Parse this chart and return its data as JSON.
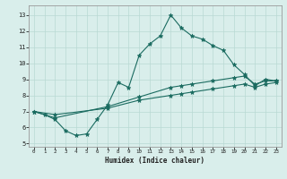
{
  "title": "",
  "xlabel": "Humidex (Indice chaleur)",
  "ylabel": "",
  "xlim": [
    -0.5,
    23.5
  ],
  "ylim": [
    4.8,
    13.6
  ],
  "yticks": [
    5,
    6,
    7,
    8,
    9,
    10,
    11,
    12,
    13
  ],
  "xticks": [
    0,
    1,
    2,
    3,
    4,
    5,
    6,
    7,
    8,
    9,
    10,
    11,
    12,
    13,
    14,
    15,
    16,
    17,
    18,
    19,
    20,
    21,
    22,
    23
  ],
  "bg_color": "#d9eeeb",
  "grid_color": "#b8d9d4",
  "line_color": "#1a6b60",
  "line1_x": [
    0,
    1,
    2,
    3,
    4,
    5,
    6,
    7,
    8,
    9,
    10,
    11,
    12,
    13,
    14,
    15,
    16,
    17,
    18,
    19,
    20,
    21,
    22,
    23
  ],
  "line1_y": [
    7.0,
    6.8,
    6.5,
    5.8,
    5.5,
    5.6,
    6.5,
    7.4,
    8.8,
    8.5,
    10.5,
    11.2,
    11.7,
    13.0,
    12.2,
    11.7,
    11.5,
    11.1,
    10.8,
    9.9,
    9.3,
    8.6,
    9.0,
    8.9
  ],
  "line2_x": [
    0,
    2,
    7,
    10,
    13,
    14,
    15,
    17,
    19,
    20,
    21,
    22,
    23
  ],
  "line2_y": [
    7.0,
    6.6,
    7.3,
    7.9,
    8.5,
    8.6,
    8.7,
    8.9,
    9.1,
    9.2,
    8.7,
    8.9,
    8.9
  ],
  "line3_x": [
    0,
    2,
    7,
    10,
    13,
    14,
    15,
    17,
    19,
    20,
    21,
    22,
    23
  ],
  "line3_y": [
    7.0,
    6.8,
    7.2,
    7.7,
    8.0,
    8.1,
    8.2,
    8.4,
    8.6,
    8.7,
    8.5,
    8.7,
    8.8
  ]
}
